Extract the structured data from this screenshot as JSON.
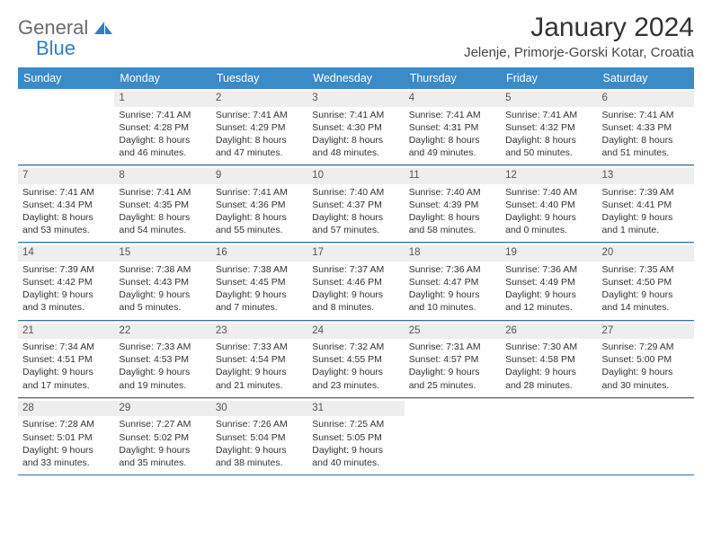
{
  "brand": {
    "line1": "General",
    "line2": "Blue"
  },
  "title": "January 2024",
  "location": "Jelenje, Primorje-Gorski Kotar, Croatia",
  "colors": {
    "header_bg": "#3b8bc8",
    "header_text": "#ffffff",
    "week_divider": "#2f6fa8",
    "daynum_bg": "#eeeeee",
    "text": "#333333"
  },
  "day_headers": [
    "Sunday",
    "Monday",
    "Tuesday",
    "Wednesday",
    "Thursday",
    "Friday",
    "Saturday"
  ],
  "weeks": [
    [
      {
        "n": "",
        "sr": "",
        "ss": "",
        "d1": "",
        "d2": ""
      },
      {
        "n": "1",
        "sr": "Sunrise: 7:41 AM",
        "ss": "Sunset: 4:28 PM",
        "d1": "Daylight: 8 hours",
        "d2": "and 46 minutes."
      },
      {
        "n": "2",
        "sr": "Sunrise: 7:41 AM",
        "ss": "Sunset: 4:29 PM",
        "d1": "Daylight: 8 hours",
        "d2": "and 47 minutes."
      },
      {
        "n": "3",
        "sr": "Sunrise: 7:41 AM",
        "ss": "Sunset: 4:30 PM",
        "d1": "Daylight: 8 hours",
        "d2": "and 48 minutes."
      },
      {
        "n": "4",
        "sr": "Sunrise: 7:41 AM",
        "ss": "Sunset: 4:31 PM",
        "d1": "Daylight: 8 hours",
        "d2": "and 49 minutes."
      },
      {
        "n": "5",
        "sr": "Sunrise: 7:41 AM",
        "ss": "Sunset: 4:32 PM",
        "d1": "Daylight: 8 hours",
        "d2": "and 50 minutes."
      },
      {
        "n": "6",
        "sr": "Sunrise: 7:41 AM",
        "ss": "Sunset: 4:33 PM",
        "d1": "Daylight: 8 hours",
        "d2": "and 51 minutes."
      }
    ],
    [
      {
        "n": "7",
        "sr": "Sunrise: 7:41 AM",
        "ss": "Sunset: 4:34 PM",
        "d1": "Daylight: 8 hours",
        "d2": "and 53 minutes."
      },
      {
        "n": "8",
        "sr": "Sunrise: 7:41 AM",
        "ss": "Sunset: 4:35 PM",
        "d1": "Daylight: 8 hours",
        "d2": "and 54 minutes."
      },
      {
        "n": "9",
        "sr": "Sunrise: 7:41 AM",
        "ss": "Sunset: 4:36 PM",
        "d1": "Daylight: 8 hours",
        "d2": "and 55 minutes."
      },
      {
        "n": "10",
        "sr": "Sunrise: 7:40 AM",
        "ss": "Sunset: 4:37 PM",
        "d1": "Daylight: 8 hours",
        "d2": "and 57 minutes."
      },
      {
        "n": "11",
        "sr": "Sunrise: 7:40 AM",
        "ss": "Sunset: 4:39 PM",
        "d1": "Daylight: 8 hours",
        "d2": "and 58 minutes."
      },
      {
        "n": "12",
        "sr": "Sunrise: 7:40 AM",
        "ss": "Sunset: 4:40 PM",
        "d1": "Daylight: 9 hours",
        "d2": "and 0 minutes."
      },
      {
        "n": "13",
        "sr": "Sunrise: 7:39 AM",
        "ss": "Sunset: 4:41 PM",
        "d1": "Daylight: 9 hours",
        "d2": "and 1 minute."
      }
    ],
    [
      {
        "n": "14",
        "sr": "Sunrise: 7:39 AM",
        "ss": "Sunset: 4:42 PM",
        "d1": "Daylight: 9 hours",
        "d2": "and 3 minutes."
      },
      {
        "n": "15",
        "sr": "Sunrise: 7:38 AM",
        "ss": "Sunset: 4:43 PM",
        "d1": "Daylight: 9 hours",
        "d2": "and 5 minutes."
      },
      {
        "n": "16",
        "sr": "Sunrise: 7:38 AM",
        "ss": "Sunset: 4:45 PM",
        "d1": "Daylight: 9 hours",
        "d2": "and 7 minutes."
      },
      {
        "n": "17",
        "sr": "Sunrise: 7:37 AM",
        "ss": "Sunset: 4:46 PM",
        "d1": "Daylight: 9 hours",
        "d2": "and 8 minutes."
      },
      {
        "n": "18",
        "sr": "Sunrise: 7:36 AM",
        "ss": "Sunset: 4:47 PM",
        "d1": "Daylight: 9 hours",
        "d2": "and 10 minutes."
      },
      {
        "n": "19",
        "sr": "Sunrise: 7:36 AM",
        "ss": "Sunset: 4:49 PM",
        "d1": "Daylight: 9 hours",
        "d2": "and 12 minutes."
      },
      {
        "n": "20",
        "sr": "Sunrise: 7:35 AM",
        "ss": "Sunset: 4:50 PM",
        "d1": "Daylight: 9 hours",
        "d2": "and 14 minutes."
      }
    ],
    [
      {
        "n": "21",
        "sr": "Sunrise: 7:34 AM",
        "ss": "Sunset: 4:51 PM",
        "d1": "Daylight: 9 hours",
        "d2": "and 17 minutes."
      },
      {
        "n": "22",
        "sr": "Sunrise: 7:33 AM",
        "ss": "Sunset: 4:53 PM",
        "d1": "Daylight: 9 hours",
        "d2": "and 19 minutes."
      },
      {
        "n": "23",
        "sr": "Sunrise: 7:33 AM",
        "ss": "Sunset: 4:54 PM",
        "d1": "Daylight: 9 hours",
        "d2": "and 21 minutes."
      },
      {
        "n": "24",
        "sr": "Sunrise: 7:32 AM",
        "ss": "Sunset: 4:55 PM",
        "d1": "Daylight: 9 hours",
        "d2": "and 23 minutes."
      },
      {
        "n": "25",
        "sr": "Sunrise: 7:31 AM",
        "ss": "Sunset: 4:57 PM",
        "d1": "Daylight: 9 hours",
        "d2": "and 25 minutes."
      },
      {
        "n": "26",
        "sr": "Sunrise: 7:30 AM",
        "ss": "Sunset: 4:58 PM",
        "d1": "Daylight: 9 hours",
        "d2": "and 28 minutes."
      },
      {
        "n": "27",
        "sr": "Sunrise: 7:29 AM",
        "ss": "Sunset: 5:00 PM",
        "d1": "Daylight: 9 hours",
        "d2": "and 30 minutes."
      }
    ],
    [
      {
        "n": "28",
        "sr": "Sunrise: 7:28 AM",
        "ss": "Sunset: 5:01 PM",
        "d1": "Daylight: 9 hours",
        "d2": "and 33 minutes."
      },
      {
        "n": "29",
        "sr": "Sunrise: 7:27 AM",
        "ss": "Sunset: 5:02 PM",
        "d1": "Daylight: 9 hours",
        "d2": "and 35 minutes."
      },
      {
        "n": "30",
        "sr": "Sunrise: 7:26 AM",
        "ss": "Sunset: 5:04 PM",
        "d1": "Daylight: 9 hours",
        "d2": "and 38 minutes."
      },
      {
        "n": "31",
        "sr": "Sunrise: 7:25 AM",
        "ss": "Sunset: 5:05 PM",
        "d1": "Daylight: 9 hours",
        "d2": "and 40 minutes."
      },
      {
        "n": "",
        "sr": "",
        "ss": "",
        "d1": "",
        "d2": ""
      },
      {
        "n": "",
        "sr": "",
        "ss": "",
        "d1": "",
        "d2": ""
      },
      {
        "n": "",
        "sr": "",
        "ss": "",
        "d1": "",
        "d2": ""
      }
    ]
  ]
}
